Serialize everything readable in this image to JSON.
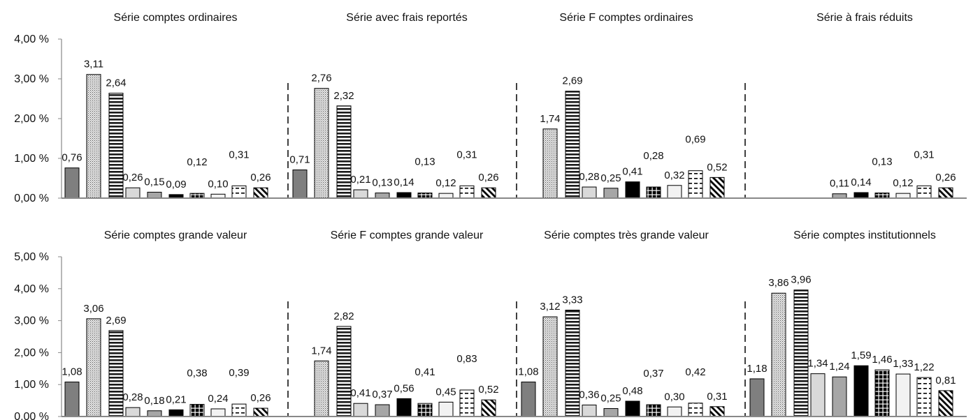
{
  "chart_data": [
    {
      "type": "bar",
      "row": "top",
      "ylim": [
        0,
        4
      ],
      "yticks": [
        "0,00 %",
        "1,00 %",
        "2,00 %",
        "3,00 %",
        "4,00 %"
      ],
      "legend": "none",
      "grid": false,
      "panels": [
        {
          "title": "Série comptes ordinaires",
          "values": [
            0.76,
            3.11,
            2.64,
            0.26,
            0.15,
            0.09,
            0.12,
            0.1,
            0.31,
            0.26
          ],
          "labels": [
            "0,76",
            "3,11",
            "2,64",
            "0,26",
            "0,15",
            "0,09",
            "0,12",
            "0,10",
            "0,31",
            "0,26"
          ]
        },
        {
          "title": "Série avec frais reportés",
          "values": [
            0.71,
            2.76,
            2.32,
            0.21,
            0.13,
            0.14,
            0.13,
            0.12,
            0.31,
            0.26
          ],
          "labels": [
            "0,71",
            "2,76",
            "2,32",
            "0,21",
            "0,13",
            "0,14",
            "0,13",
            "0,12",
            "0,31",
            "0,26"
          ]
        },
        {
          "title": "Série F comptes ordinaires",
          "values": [
            null,
            1.74,
            2.69,
            0.28,
            0.25,
            0.41,
            0.28,
            0.32,
            0.69,
            0.52
          ],
          "labels": [
            "",
            "1,74",
            "2,69",
            "0,28",
            "0,25",
            "0,41",
            "0,28",
            "0,32",
            "0,69",
            "0,52"
          ]
        },
        {
          "title": "Série à frais réduits",
          "values": [
            null,
            null,
            null,
            null,
            0.11,
            0.14,
            0.13,
            0.12,
            0.31,
            0.26
          ],
          "labels": [
            "",
            "",
            "",
            "",
            "0,11",
            "0,14",
            "0,13",
            "0,12",
            "0,31",
            "0,26"
          ]
        }
      ]
    },
    {
      "type": "bar",
      "row": "bottom",
      "ylim": [
        0,
        5
      ],
      "yticks": [
        "0,00 %",
        "1,00 %",
        "2,00 %",
        "3,00 %",
        "4,00 %",
        "5,00 %"
      ],
      "legend": "none",
      "grid": false,
      "panels": [
        {
          "title": "Série comptes grande valeur",
          "values": [
            1.08,
            3.06,
            2.69,
            0.28,
            0.18,
            0.21,
            0.38,
            0.24,
            0.39,
            0.26
          ],
          "labels": [
            "1,08",
            "3,06",
            "2,69",
            "0,28",
            "0,18",
            "0,21",
            "0,38",
            "0,24",
            "0,39",
            "0,26"
          ]
        },
        {
          "title": "Série F comptes grande valeur",
          "values": [
            null,
            1.74,
            2.82,
            0.41,
            0.37,
            0.56,
            0.41,
            0.45,
            0.83,
            0.52
          ],
          "labels": [
            "",
            "1,74",
            "2,82",
            "0,41",
            "0,37",
            "0,56",
            "0,41",
            "0,45",
            "0,83",
            "0,52"
          ]
        },
        {
          "title": "Série comptes très grande valeur",
          "values": [
            1.08,
            3.12,
            3.33,
            0.36,
            0.25,
            0.48,
            0.37,
            0.3,
            0.42,
            0.31
          ],
          "labels": [
            "1,08",
            "3,12",
            "3,33",
            "0,36",
            "0,25",
            "0,48",
            "0,37",
            "0,30",
            "0,42",
            "0,31"
          ]
        },
        {
          "title": "Série comptes institutionnels",
          "values": [
            1.18,
            3.86,
            3.96,
            1.34,
            1.24,
            1.59,
            1.46,
            1.33,
            1.22,
            0.81
          ],
          "labels": [
            "1,18",
            "3,86",
            "3,96",
            "1,34",
            "1,24",
            "1,59",
            "1,46",
            "1,33",
            "1,22",
            "0,81"
          ]
        }
      ]
    }
  ]
}
